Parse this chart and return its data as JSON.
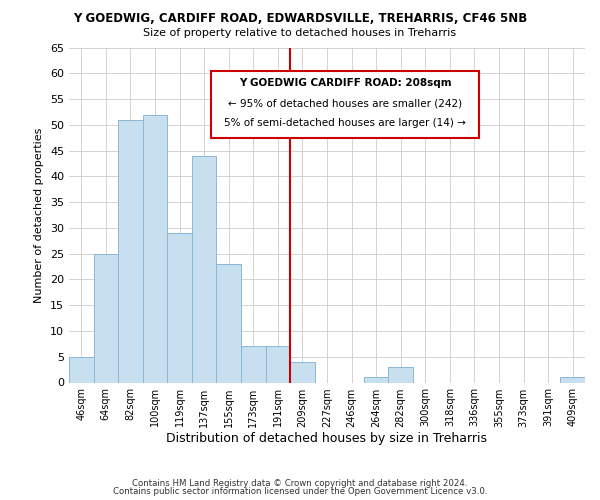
{
  "title": "Y GOEDWIG, CARDIFF ROAD, EDWARDSVILLE, TREHARRIS, CF46 5NB",
  "subtitle": "Size of property relative to detached houses in Treharris",
  "xlabel": "Distribution of detached houses by size in Treharris",
  "ylabel": "Number of detached properties",
  "footnote1": "Contains HM Land Registry data © Crown copyright and database right 2024.",
  "footnote2": "Contains public sector information licensed under the Open Government Licence v3.0.",
  "bar_labels": [
    "46sqm",
    "64sqm",
    "82sqm",
    "100sqm",
    "119sqm",
    "137sqm",
    "155sqm",
    "173sqm",
    "191sqm",
    "209sqm",
    "227sqm",
    "246sqm",
    "264sqm",
    "282sqm",
    "300sqm",
    "318sqm",
    "336sqm",
    "355sqm",
    "373sqm",
    "391sqm",
    "409sqm"
  ],
  "bar_heights": [
    5,
    25,
    51,
    52,
    29,
    44,
    23,
    7,
    7,
    4,
    0,
    0,
    1,
    3,
    0,
    0,
    0,
    0,
    0,
    0,
    1
  ],
  "bar_color": "#c8dff0",
  "bar_edge_color": "#8ab8d8",
  "vline_index": 9,
  "vline_color": "#cc0000",
  "ylim_max": 65,
  "yticks": [
    0,
    5,
    10,
    15,
    20,
    25,
    30,
    35,
    40,
    45,
    50,
    55,
    60,
    65
  ],
  "annotation_title": "Y GOEDWIG CARDIFF ROAD: 208sqm",
  "annotation_line1": "← 95% of detached houses are smaller (242)",
  "annotation_line2": "5% of semi-detached houses are larger (14) →",
  "background_color": "#ffffff",
  "grid_color": "#cccccc"
}
